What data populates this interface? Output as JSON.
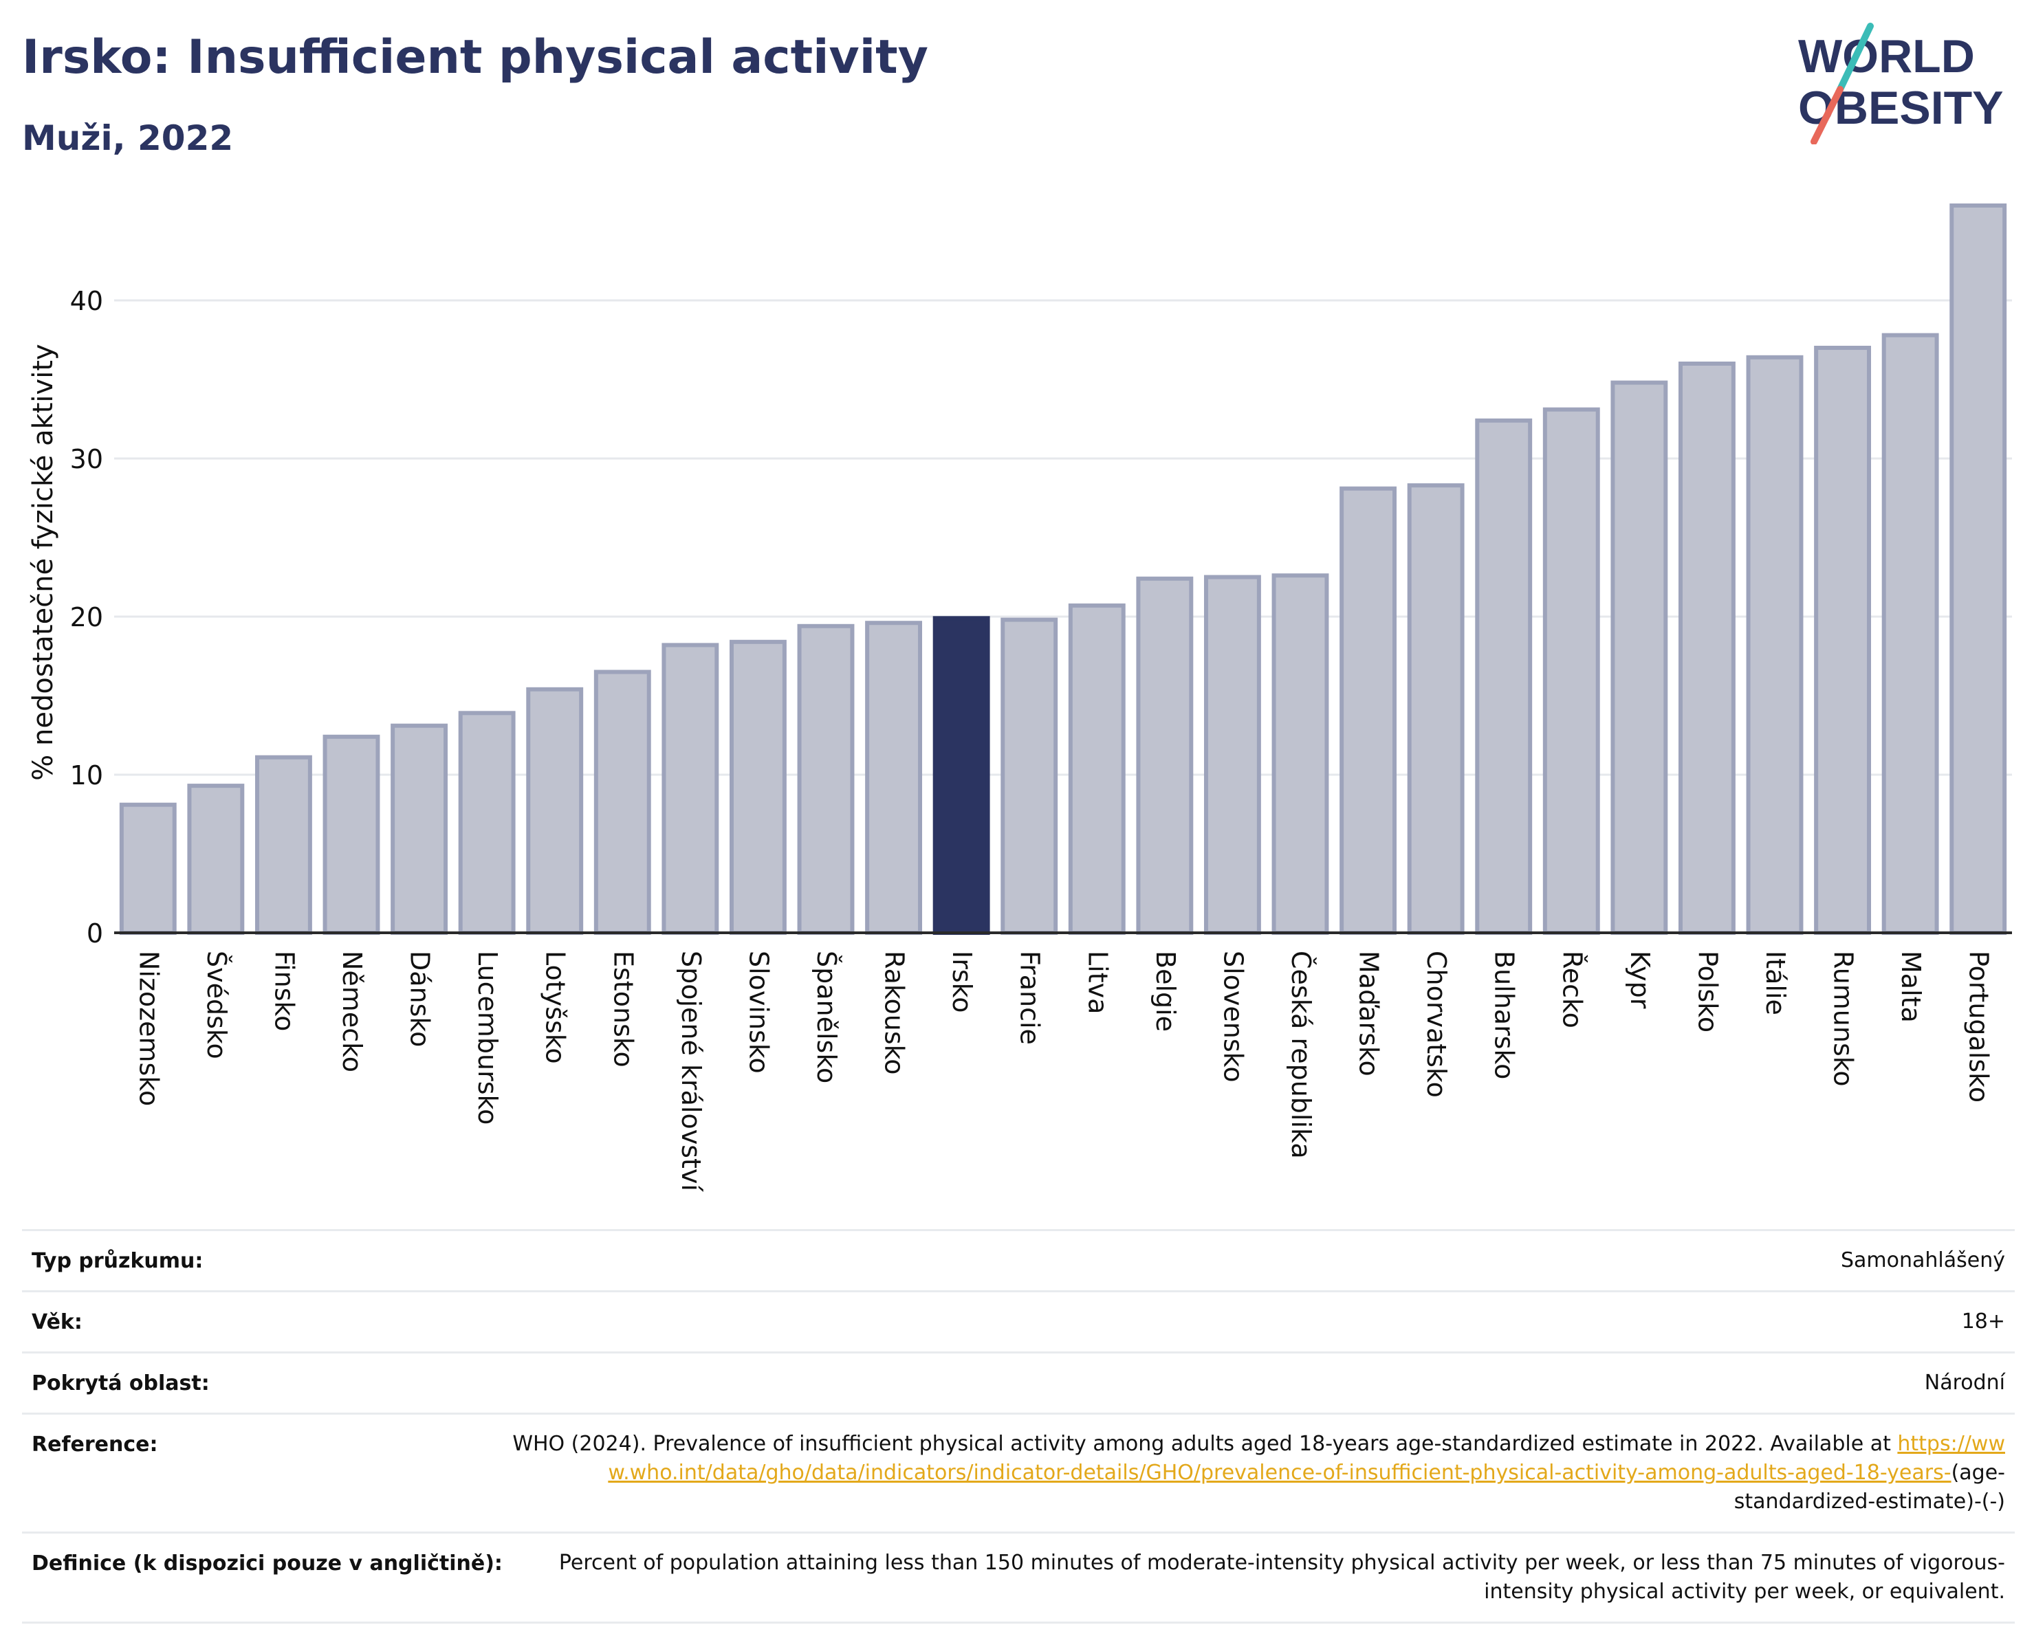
{
  "header": {
    "title": "Irsko: Insufficient physical activity",
    "subtitle": "Muži, 2022"
  },
  "logo": {
    "line1": "WORLD",
    "line2": "OBESITY",
    "accent_colors": [
      "#3bbcb7",
      "#e8685a"
    ],
    "text_color": "#2b3461"
  },
  "colors": {
    "highlight_bar": "#2b3461",
    "bar_fill": "#bfc2cf",
    "bar_stroke": "#9da3bb",
    "link": "#e3a81a"
  },
  "chart_data": {
    "type": "bar",
    "ylabel": "% nedostatečné fyzické aktivity",
    "xlabel": "",
    "ylim": [
      0,
      47
    ],
    "yticks": [
      0,
      10,
      20,
      30,
      40
    ],
    "grid": true,
    "highlight": "Irsko",
    "categories": [
      "Nizozemsko",
      "Švédsko",
      "Finsko",
      "Německo",
      "Dánsko",
      "Lucembursko",
      "Lotyšsko",
      "Estonsko",
      "Spojené království",
      "Slovinsko",
      "Španělsko",
      "Rakousko",
      "Irsko",
      "Francie",
      "Litva",
      "Belgie",
      "Slovensko",
      "Česká republika",
      "Maďarsko",
      "Chorvatsko",
      "Bulharsko",
      "Řecko",
      "Kypr",
      "Polsko",
      "Itálie",
      "Rumunsko",
      "Malta",
      "Portugalsko"
    ],
    "values": [
      8.1,
      9.3,
      11.1,
      12.4,
      13.1,
      13.9,
      15.4,
      16.5,
      18.2,
      18.4,
      19.4,
      19.6,
      19.9,
      19.8,
      20.7,
      22.4,
      22.5,
      22.6,
      28.1,
      28.3,
      32.4,
      33.1,
      34.8,
      36.0,
      36.4,
      37.0,
      37.8,
      46.0
    ]
  },
  "info": {
    "survey_type_label": "Typ průzkumu:",
    "survey_type_value": "Samonahlášený",
    "age_label": "Věk:",
    "age_value": "18+",
    "coverage_label": "Pokrytá oblast:",
    "coverage_value": "Národní",
    "reference_label": "Reference:",
    "reference_text": "WHO (2024). Prevalence of insufficient physical activity among adults aged 18-years age-standardized estimate in 2022. Available at",
    "reference_link": "https://www.who.int/data/gho/data/indicators/indicator-details/GHO/prevalence-of-insufficient-physical-activity-among-adults-aged-18-years-",
    "reference_suffix": "(age-standardized-estimate)-(-)",
    "definition_label": "Definice (k dispozici pouze v angličtině):",
    "definition_value": "Percent of population attaining less than 150 minutes of moderate-intensity physical activity per week, or less than 75 minutes of vigorous-intensity physical activity per week, or equivalent."
  }
}
